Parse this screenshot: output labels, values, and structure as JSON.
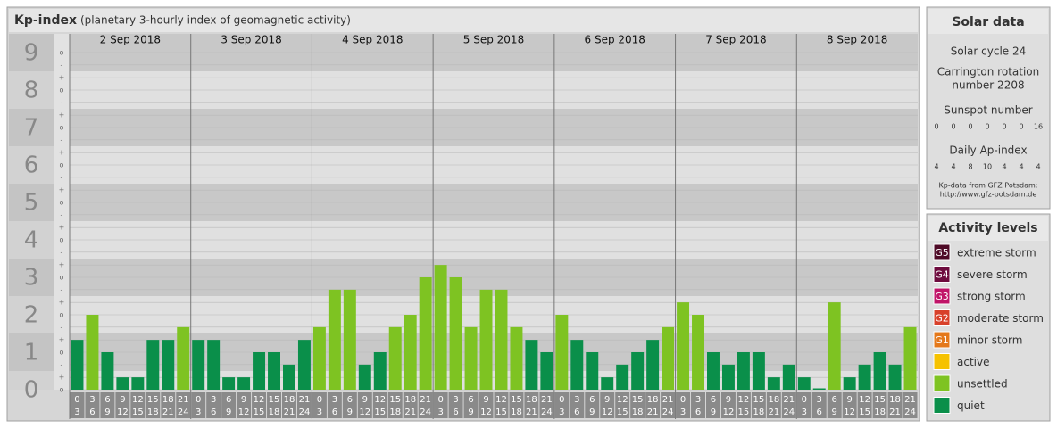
{
  "chart_data": {
    "type": "bar",
    "title": "Kp-index",
    "subtitle": "(planetary 3-hourly index of geomagnetic activity)",
    "days": [
      "2 Sep 2018",
      "3 Sep 2018",
      "4 Sep 2018",
      "5 Sep 2018",
      "6 Sep 2018",
      "7 Sep 2018",
      "8 Sep 2018"
    ],
    "hour_labels": [
      [
        "0",
        "3"
      ],
      [
        "3",
        "6"
      ],
      [
        "6",
        "9"
      ],
      [
        "9",
        "12"
      ],
      [
        "12",
        "15"
      ],
      [
        "15",
        "18"
      ],
      [
        "18",
        "21"
      ],
      [
        "21",
        "24"
      ]
    ],
    "values": [
      1.33,
      2,
      1,
      0.33,
      0.33,
      1.33,
      1.33,
      1.67,
      1.33,
      1.33,
      0.33,
      0.33,
      1,
      1,
      0.67,
      1.33,
      1.67,
      2.67,
      2.67,
      0.67,
      1,
      1.67,
      2,
      3,
      3.33,
      3,
      1.67,
      2.67,
      2.67,
      1.67,
      1.33,
      1,
      2,
      1.33,
      1,
      0.33,
      0.67,
      1,
      1.33,
      1.67,
      2.33,
      2,
      1,
      0.67,
      1,
      1,
      0.33,
      0.67,
      0.33,
      0,
      2.33,
      0.33,
      0.67,
      1,
      0.67,
      1.67
    ],
    "colors": [
      "#0a8f4a",
      "#7ec322",
      "#0a8f4a",
      "#0a8f4a",
      "#0a8f4a",
      "#0a8f4a",
      "#0a8f4a",
      "#7ec322",
      "#0a8f4a",
      "#0a8f4a",
      "#0a8f4a",
      "#0a8f4a",
      "#0a8f4a",
      "#0a8f4a",
      "#0a8f4a",
      "#0a8f4a",
      "#7ec322",
      "#7ec322",
      "#7ec322",
      "#0a8f4a",
      "#0a8f4a",
      "#7ec322",
      "#7ec322",
      "#7ec322",
      "#7ec322",
      "#7ec322",
      "#7ec322",
      "#7ec322",
      "#7ec322",
      "#7ec322",
      "#0a8f4a",
      "#0a8f4a",
      "#7ec322",
      "#0a8f4a",
      "#0a8f4a",
      "#0a8f4a",
      "#0a8f4a",
      "#0a8f4a",
      "#0a8f4a",
      "#7ec322",
      "#7ec322",
      "#7ec322",
      "#0a8f4a",
      "#0a8f4a",
      "#0a8f4a",
      "#0a8f4a",
      "#0a8f4a",
      "#0a8f4a",
      "#0a8f4a",
      "#0a8f4a",
      "#7ec322",
      "#0a8f4a",
      "#0a8f4a",
      "#0a8f4a",
      "#0a8f4a",
      "#7ec322"
    ],
    "ylim": [
      0,
      9.5
    ],
    "yticks": [
      0,
      1,
      2,
      3,
      4,
      5,
      6,
      7,
      8,
      9
    ],
    "minor_ticks": [
      {
        "value": 0,
        "label": "o"
      },
      {
        "value": 0.33,
        "label": "+"
      },
      {
        "value": 0.67,
        "label": "-"
      },
      {
        "value": 1,
        "label": "o"
      },
      {
        "value": 1.33,
        "label": "+"
      },
      {
        "value": 1.67,
        "label": "-"
      },
      {
        "value": 2,
        "label": "o"
      },
      {
        "value": 2.33,
        "label": "+"
      },
      {
        "value": 2.67,
        "label": "-"
      },
      {
        "value": 3,
        "label": "o"
      },
      {
        "value": 3.33,
        "label": "+"
      },
      {
        "value": 3.67,
        "label": "-"
      },
      {
        "value": 4,
        "label": "o"
      },
      {
        "value": 4.33,
        "label": "+"
      },
      {
        "value": 4.67,
        "label": "-"
      },
      {
        "value": 5,
        "label": "o"
      },
      {
        "value": 5.33,
        "label": "+"
      },
      {
        "value": 5.67,
        "label": "-"
      },
      {
        "value": 6,
        "label": "o"
      },
      {
        "value": 6.33,
        "label": "+"
      },
      {
        "value": 6.67,
        "label": "-"
      },
      {
        "value": 7,
        "label": "o"
      },
      {
        "value": 7.33,
        "label": "+"
      },
      {
        "value": 7.67,
        "label": "-"
      },
      {
        "value": 8,
        "label": "o"
      },
      {
        "value": 8.33,
        "label": "+"
      },
      {
        "value": 8.67,
        "label": "-"
      },
      {
        "value": 9,
        "label": "o"
      }
    ],
    "grid": true
  },
  "solar": {
    "title": "Solar data",
    "cycle": "Solar cycle 24",
    "carrington": [
      "Carrington rotation",
      "number 2208"
    ],
    "sunspot_title": "Sunspot number",
    "sunspot": [
      0,
      0,
      0,
      0,
      0,
      0,
      16
    ],
    "ap_title": "Daily Ap-index",
    "ap": [
      4,
      4,
      8,
      10,
      4,
      4,
      4
    ],
    "credit": [
      "Kp-data from GFZ Potsdam:",
      "http://www.gfz-potsdam.de"
    ]
  },
  "legend": {
    "title": "Activity levels",
    "items": [
      {
        "badge": "G5",
        "label": "extreme storm",
        "color": "#4e0a26"
      },
      {
        "badge": "G4",
        "label": "severe storm",
        "color": "#6e0c3e"
      },
      {
        "badge": "G3",
        "label": "strong storm",
        "color": "#c01468"
      },
      {
        "badge": "G2",
        "label": "moderate storm",
        "color": "#d8402a"
      },
      {
        "badge": "G1",
        "label": "minor storm",
        "color": "#e4781a"
      },
      {
        "label": "active",
        "color": "#f6c200"
      },
      {
        "label": "unsettled",
        "color": "#7ec322"
      },
      {
        "label": "quiet",
        "color": "#0a8f4a"
      }
    ]
  }
}
